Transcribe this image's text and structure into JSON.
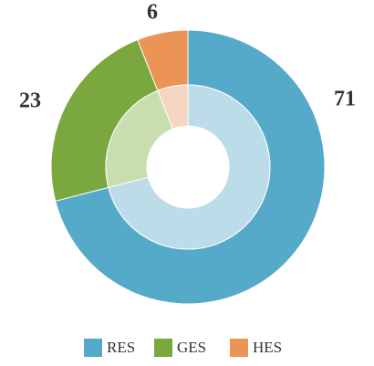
{
  "chart_data": {
    "type": "pie",
    "categories": [
      "RES",
      "GES",
      "HES"
    ],
    "values": [
      71,
      23,
      6
    ],
    "colors": [
      "#55a9c9",
      "#7aa83f",
      "#ec9455"
    ],
    "inner_colors": [
      "#bcdcea",
      "#c8ddb0",
      "#f5d5bf"
    ],
    "legend": "bottom"
  }
}
